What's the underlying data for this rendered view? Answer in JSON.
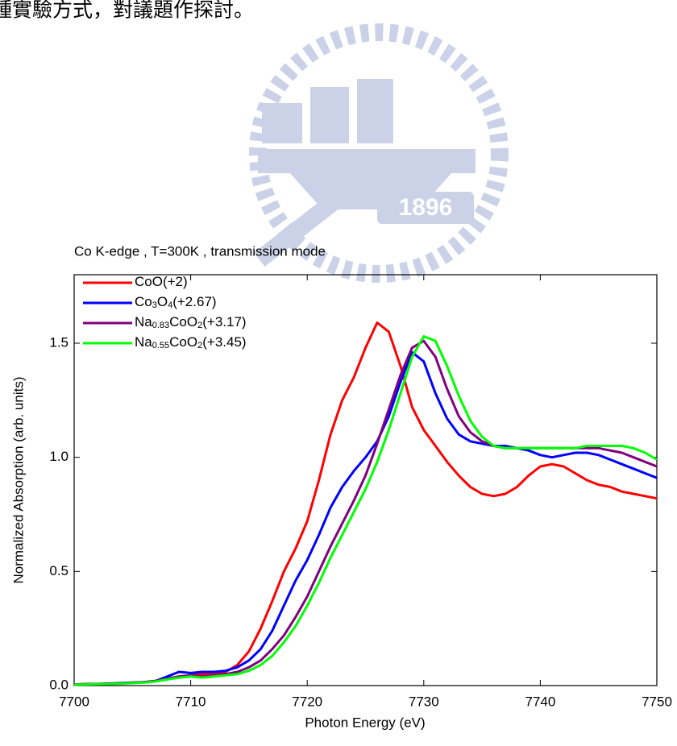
{
  "page_text": "種實驗方式，對議題作探討。",
  "watermark_year": "1896",
  "chart_data": {
    "type": "line",
    "title": "Co K-edge , T=300K , transmission mode",
    "x_label": "Photon Energy (eV)",
    "y_label": "Normalized Absorption (arb. units)",
    "x": [
      7700,
      7701,
      7702,
      7703,
      7704,
      7705,
      7706,
      7707,
      7708,
      7709,
      7710,
      7711,
      7712,
      7713,
      7714,
      7715,
      7716,
      7717,
      7718,
      7719,
      7720,
      7721,
      7722,
      7723,
      7724,
      7725,
      7726,
      7727,
      7728,
      7729,
      7730,
      7731,
      7732,
      7733,
      7734,
      7735,
      7736,
      7737,
      7738,
      7739,
      7740,
      7741,
      7742,
      7743,
      7744,
      7745,
      7746,
      7747,
      7748,
      7749,
      7750
    ],
    "xlim": [
      7700,
      7750
    ],
    "xticks": [
      7700,
      7710,
      7720,
      7730,
      7740,
      7750
    ],
    "ylim": [
      0,
      1.8
    ],
    "yticks": [
      {
        "value": 0,
        "label": "0.0"
      },
      0.5,
      {
        "value": 1,
        "label": "1.0"
      },
      1.5
    ],
    "legend": "upper left",
    "series": [
      {
        "name": "CoO(+2)",
        "color": "#ff0000",
        "values": [
          0.005,
          0.006,
          0.007,
          0.008,
          0.01,
          0.012,
          0.015,
          0.02,
          0.03,
          0.04,
          0.045,
          0.05,
          0.05,
          0.06,
          0.09,
          0.15,
          0.25,
          0.37,
          0.5,
          0.6,
          0.72,
          0.9,
          1.1,
          1.25,
          1.35,
          1.48,
          1.59,
          1.55,
          1.4,
          1.22,
          1.12,
          1.05,
          0.98,
          0.92,
          0.87,
          0.84,
          0.83,
          0.84,
          0.87,
          0.92,
          0.96,
          0.97,
          0.96,
          0.93,
          0.9,
          0.88,
          0.87,
          0.85,
          0.84,
          0.83,
          0.82
        ]
      },
      {
        "name": "Co3O4(+2.67)",
        "color": "#0000ff",
        "values": [
          0.005,
          0.006,
          0.007,
          0.009,
          0.011,
          0.013,
          0.015,
          0.02,
          0.04,
          0.06,
          0.055,
          0.06,
          0.06,
          0.065,
          0.08,
          0.11,
          0.16,
          0.24,
          0.35,
          0.46,
          0.55,
          0.66,
          0.78,
          0.87,
          0.94,
          1.0,
          1.07,
          1.18,
          1.33,
          1.46,
          1.42,
          1.28,
          1.17,
          1.1,
          1.07,
          1.06,
          1.05,
          1.05,
          1.04,
          1.03,
          1.01,
          1.0,
          1.01,
          1.02,
          1.02,
          1.01,
          0.99,
          0.97,
          0.95,
          0.93,
          0.91
        ]
      },
      {
        "name": "Na0.83CoO2(+3.17)",
        "color": "#800080",
        "values": [
          0.005,
          0.006,
          0.007,
          0.008,
          0.01,
          0.012,
          0.015,
          0.02,
          0.03,
          0.04,
          0.045,
          0.04,
          0.045,
          0.05,
          0.06,
          0.08,
          0.11,
          0.16,
          0.22,
          0.3,
          0.39,
          0.5,
          0.61,
          0.71,
          0.81,
          0.92,
          1.06,
          1.21,
          1.36,
          1.48,
          1.51,
          1.44,
          1.3,
          1.18,
          1.11,
          1.07,
          1.05,
          1.04,
          1.04,
          1.04,
          1.04,
          1.04,
          1.04,
          1.04,
          1.04,
          1.04,
          1.03,
          1.02,
          1.0,
          0.98,
          0.96
        ]
      },
      {
        "name": "Na0.55CoO2(+3.45)",
        "color": "#00ff00",
        "values": [
          0.004,
          0.005,
          0.006,
          0.007,
          0.009,
          0.011,
          0.013,
          0.018,
          0.027,
          0.035,
          0.04,
          0.035,
          0.04,
          0.045,
          0.05,
          0.065,
          0.09,
          0.13,
          0.19,
          0.26,
          0.35,
          0.45,
          0.56,
          0.66,
          0.76,
          0.86,
          0.98,
          1.12,
          1.28,
          1.44,
          1.53,
          1.51,
          1.4,
          1.27,
          1.16,
          1.09,
          1.05,
          1.04,
          1.04,
          1.04,
          1.04,
          1.04,
          1.04,
          1.04,
          1.05,
          1.05,
          1.05,
          1.05,
          1.04,
          1.02,
          0.99
        ]
      }
    ]
  }
}
